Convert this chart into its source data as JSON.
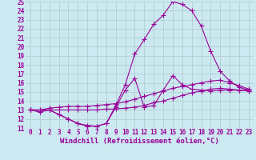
{
  "bg_color": "#cce8f0",
  "grid_color": "#aacccc",
  "line_color": "#990099",
  "marker": "+",
  "markersize": 4,
  "linewidth": 0.8,
  "xlim": [
    -0.5,
    23.5
  ],
  "ylim": [
    11,
    25
  ],
  "xlabel": "Windchill (Refroidissement éolien,°C)",
  "xlabel_fontsize": 6.5,
  "tick_fontsize": 5.5,
  "xticks": [
    0,
    1,
    2,
    3,
    4,
    5,
    6,
    7,
    8,
    9,
    10,
    11,
    12,
    13,
    14,
    15,
    16,
    17,
    18,
    19,
    20,
    21,
    22,
    23
  ],
  "yticks": [
    11,
    12,
    13,
    14,
    15,
    16,
    17,
    18,
    19,
    20,
    21,
    22,
    23,
    24,
    25
  ],
  "series": [
    {
      "x": [
        0,
        1,
        2,
        3,
        4,
        5,
        6,
        7,
        8,
        9,
        10,
        11,
        12,
        13,
        14,
        15,
        16,
        17,
        18,
        19,
        20,
        21,
        22,
        23
      ],
      "y": [
        13,
        12.8,
        13,
        12.5,
        12.0,
        11.5,
        11.3,
        11.2,
        11.5,
        13.3,
        15.2,
        16.5,
        13.3,
        13.5,
        15.2,
        16.8,
        15.8,
        15.3,
        15.2,
        15.1,
        15.2,
        15.2,
        15.2,
        15.2
      ]
    },
    {
      "x": [
        0,
        1,
        2,
        3,
        4,
        5,
        6,
        7,
        8,
        9,
        10,
        11,
        12,
        13,
        14,
        15,
        16,
        17,
        18,
        19,
        20,
        21,
        22,
        23
      ],
      "y": [
        13,
        13,
        13.2,
        13.3,
        13.4,
        13.4,
        13.4,
        13.5,
        13.6,
        13.7,
        13.9,
        14.2,
        14.5,
        14.8,
        15.1,
        15.4,
        15.6,
        15.8,
        16.0,
        16.2,
        16.3,
        16.0,
        15.7,
        15.3
      ]
    },
    {
      "x": [
        0,
        1,
        2,
        3,
        4,
        5,
        6,
        7,
        8,
        9,
        10,
        11,
        12,
        13,
        14,
        15,
        16,
        17,
        18,
        19,
        20,
        21,
        22,
        23
      ],
      "y": [
        13,
        13,
        13,
        13,
        13,
        13,
        13,
        13,
        13.1,
        13.1,
        13.2,
        13.3,
        13.5,
        13.8,
        14.0,
        14.3,
        14.6,
        14.9,
        15.1,
        15.3,
        15.4,
        15.3,
        15.2,
        15.1
      ]
    },
    {
      "x": [
        0,
        1,
        2,
        3,
        4,
        5,
        6,
        7,
        8,
        9,
        10,
        11,
        12,
        13,
        14,
        15,
        16,
        17,
        18,
        19,
        20,
        21,
        22,
        23
      ],
      "y": [
        13,
        12.8,
        13,
        12.5,
        12.0,
        11.5,
        11.2,
        11.2,
        11.5,
        13.5,
        15.8,
        19.2,
        20.8,
        22.5,
        23.5,
        25.0,
        24.7,
        24.0,
        22.3,
        19.5,
        17.3,
        16.2,
        15.5,
        15.2
      ]
    }
  ]
}
